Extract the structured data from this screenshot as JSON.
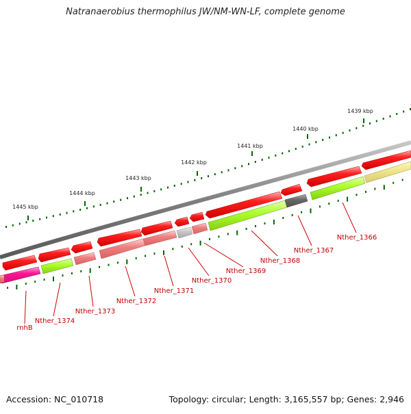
{
  "title": "Natranaerobius thermophilus JW/NM-WN-LF, complete genome",
  "footer": {
    "accession": "Accession: NC_010718",
    "genome_info": "Topology: circular; Length: 3,165,557 bp; Genes: 2,946"
  },
  "scale": {
    "tick_labels": [
      "1439 kbp",
      "1440 kbp",
      "1441 kbp",
      "1442 kbp",
      "1443 kbp",
      "1444 kbp",
      "1445 kbp"
    ]
  },
  "genes": [
    "Nther_1366",
    "Nther_1367",
    "Nther_1368",
    "Nther_1369",
    "Nther_1370",
    "Nther_1371",
    "Nther_1372",
    "Nther_1373",
    "Nther_1374",
    "rnhB"
  ],
  "colors": {
    "backbone": "#7f7f7f",
    "gene_forward": "#ff0000",
    "cds_green": "#adff2f",
    "cds_pink": "#f08080",
    "cds_magenta": "#ff1493",
    "cds_grey": "#696969",
    "cds_light_grey": "#bfbfbf",
    "cds_khaki": "#f0e68c",
    "tick": "#006400",
    "label": "#c00000"
  }
}
